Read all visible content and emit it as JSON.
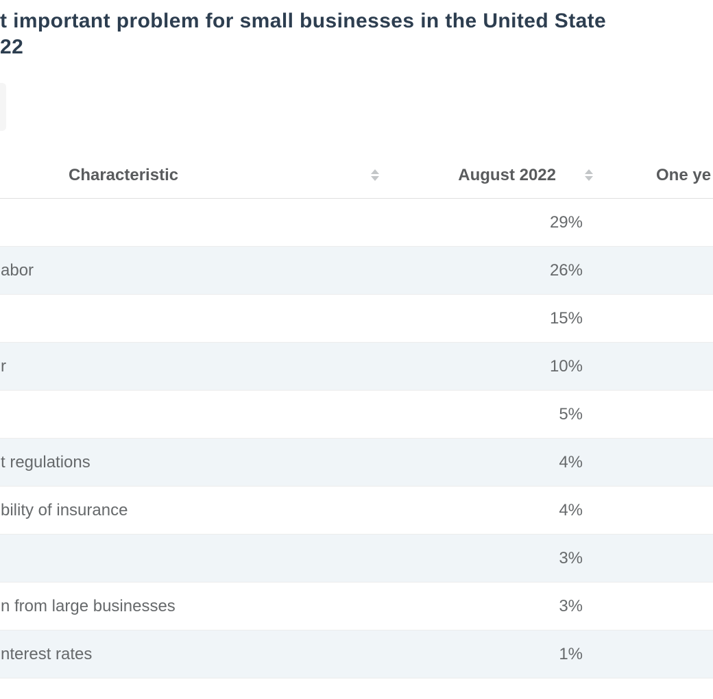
{
  "page": {
    "title_line1": "t important problem for small businesses in the United State",
    "title_line2": "22"
  },
  "table": {
    "columns": [
      {
        "label": "Characteristic",
        "sortable": true
      },
      {
        "label": "August 2022",
        "sortable": true
      },
      {
        "label": "One ye",
        "sortable": false
      }
    ],
    "rows": [
      {
        "label": "",
        "value": "29%"
      },
      {
        "label": "abor",
        "value": "26%"
      },
      {
        "label": "",
        "value": "15%"
      },
      {
        "label": "r",
        "value": "10%"
      },
      {
        "label": "",
        "value": "5%"
      },
      {
        "label": "t regulations",
        "value": "4%"
      },
      {
        "label": "bility of insurance",
        "value": "4%"
      },
      {
        "label": "",
        "value": "3%"
      },
      {
        "label": "n from large businesses",
        "value": "3%"
      },
      {
        "label": "nterest rates",
        "value": "1%"
      }
    ]
  },
  "chart_data": {
    "type": "table",
    "title": "t important problem for small businesses in the United State 22",
    "columns": [
      "Characteristic",
      "August 2022",
      "One ye"
    ],
    "categories": [
      "",
      "abor",
      "",
      "r",
      "",
      "t regulations",
      "bility of insurance",
      "",
      "n from large businesses",
      "nterest rates"
    ],
    "values": [
      29,
      26,
      15,
      10,
      5,
      4,
      4,
      3,
      3,
      1
    ],
    "unit": "%",
    "layout": {
      "zebra_striping": true,
      "sort_icons": true,
      "cropped_left_and_right": true
    }
  },
  "colors": {
    "title_text": "#2d3e50",
    "header_text": "#595b5d",
    "cell_text": "#66696b",
    "zebra_row_bg": "#f0f5f8",
    "row_border": "#ececec",
    "sort_icon": "#c3c6c8"
  }
}
